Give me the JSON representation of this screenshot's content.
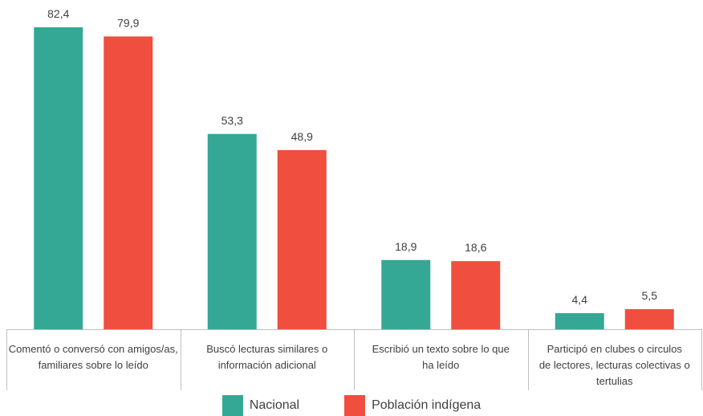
{
  "chart_data": {
    "type": "bar",
    "categories": [
      [
        "Comentó o conversó con amigos/as,",
        "familiares sobre lo leído"
      ],
      [
        "Buscó lecturas similares o",
        "información adicional"
      ],
      [
        "Escribió un texto sobre lo que",
        "ha leído"
      ],
      [
        "Participó en clubes o circulos",
        "de lectores, lecturas colectivas o",
        "tertulias"
      ]
    ],
    "series": [
      {
        "name": "Nacional",
        "color": "#35a795",
        "values": [
          82.4,
          53.3,
          18.9,
          4.4
        ],
        "labels": [
          "82,4",
          "53,3",
          "18,9",
          "4,4"
        ]
      },
      {
        "name": "Población indígena",
        "color": "#f04e3e",
        "values": [
          79.9,
          48.9,
          18.6,
          5.5
        ],
        "labels": [
          "79,9",
          "48,9",
          "18,6",
          "5,5"
        ]
      }
    ],
    "ylim": [
      0,
      82.4
    ],
    "grid": false,
    "legend": "bottom"
  }
}
